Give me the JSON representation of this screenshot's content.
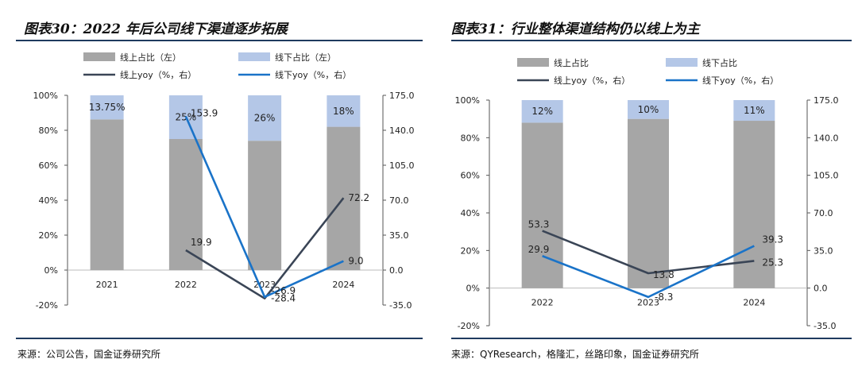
{
  "colors": {
    "online_bar": "#a6a6a6",
    "offline_bar": "#b4c7e7",
    "online_line": "#3a4556",
    "offline_line": "#1a73c8",
    "rule": "#1f3a5f"
  },
  "chart_data": [
    {
      "id": "left",
      "type": "bar",
      "title": "图表30：2022 年后公司线下渠道逐步拓展",
      "source": "来源：公司公告，国金证券研究所",
      "categories": [
        "2021",
        "2022",
        "2023",
        "2024"
      ],
      "stacked_percent": true,
      "series": [
        {
          "name": "线上占比（左）",
          "kind": "bar",
          "axis": "left",
          "values": [
            86.25,
            75,
            74,
            82
          ]
        },
        {
          "name": "线下占比（左）",
          "kind": "bar",
          "axis": "left",
          "values": [
            13.75,
            25,
            26,
            18
          ],
          "labels": [
            "13.75%",
            "25%",
            "26%",
            "18%"
          ]
        },
        {
          "name": "线上yoy（%，右）",
          "kind": "line",
          "axis": "right",
          "values": [
            null,
            19.9,
            -28.4,
            72.2
          ],
          "labels": [
            "",
            "19.9",
            "-28.4",
            "72.2"
          ]
        },
        {
          "name": "线下yoy（%，右）",
          "kind": "line",
          "axis": "right",
          "values": [
            null,
            153.9,
            -26.9,
            9.0
          ],
          "labels": [
            "",
            "153.9",
            "-26.9",
            "9.0"
          ]
        }
      ],
      "left_axis": {
        "ticks": [
          "100%",
          "80%",
          "60%",
          "40%",
          "20%",
          "0%",
          "-20%"
        ],
        "min": -20,
        "max": 100
      },
      "right_axis": {
        "ticks": [
          "175.0",
          "140.0",
          "105.0",
          "70.0",
          "35.0",
          "0.0",
          "-35.0"
        ],
        "min": -35,
        "max": 175
      }
    },
    {
      "id": "right",
      "type": "bar",
      "title": "图表31：行业整体渠道结构仍以线上为主",
      "source": "来源：QYResearch，格隆汇，丝路印象，国金证券研究所",
      "categories": [
        "2022",
        "2023",
        "2024"
      ],
      "stacked_percent": true,
      "series": [
        {
          "name": "线上占比",
          "kind": "bar",
          "axis": "left",
          "values": [
            88,
            90,
            89
          ]
        },
        {
          "name": "线下占比",
          "kind": "bar",
          "axis": "left",
          "values": [
            12,
            10,
            11
          ],
          "labels": [
            "12%",
            "10%",
            "11%"
          ]
        },
        {
          "name": "线上yoy（%，右）",
          "kind": "line",
          "axis": "right",
          "values": [
            53.3,
            13.8,
            25.3
          ],
          "labels": [
            "53.3",
            "13.8",
            "25.3"
          ]
        },
        {
          "name": "线下yoy（%，右）",
          "kind": "line",
          "axis": "right",
          "values": [
            29.9,
            -8.3,
            39.3
          ],
          "labels": [
            "29.9",
            "-8.3",
            "39.3"
          ]
        }
      ],
      "left_axis": {
        "ticks": [
          "100%",
          "80%",
          "60%",
          "40%",
          "20%",
          "0%",
          "-20%"
        ],
        "min": -20,
        "max": 100
      },
      "right_axis": {
        "ticks": [
          "175.0",
          "140.0",
          "105.0",
          "70.0",
          "35.0",
          "0.0",
          "-35.0"
        ],
        "min": -35,
        "max": 175
      }
    }
  ]
}
